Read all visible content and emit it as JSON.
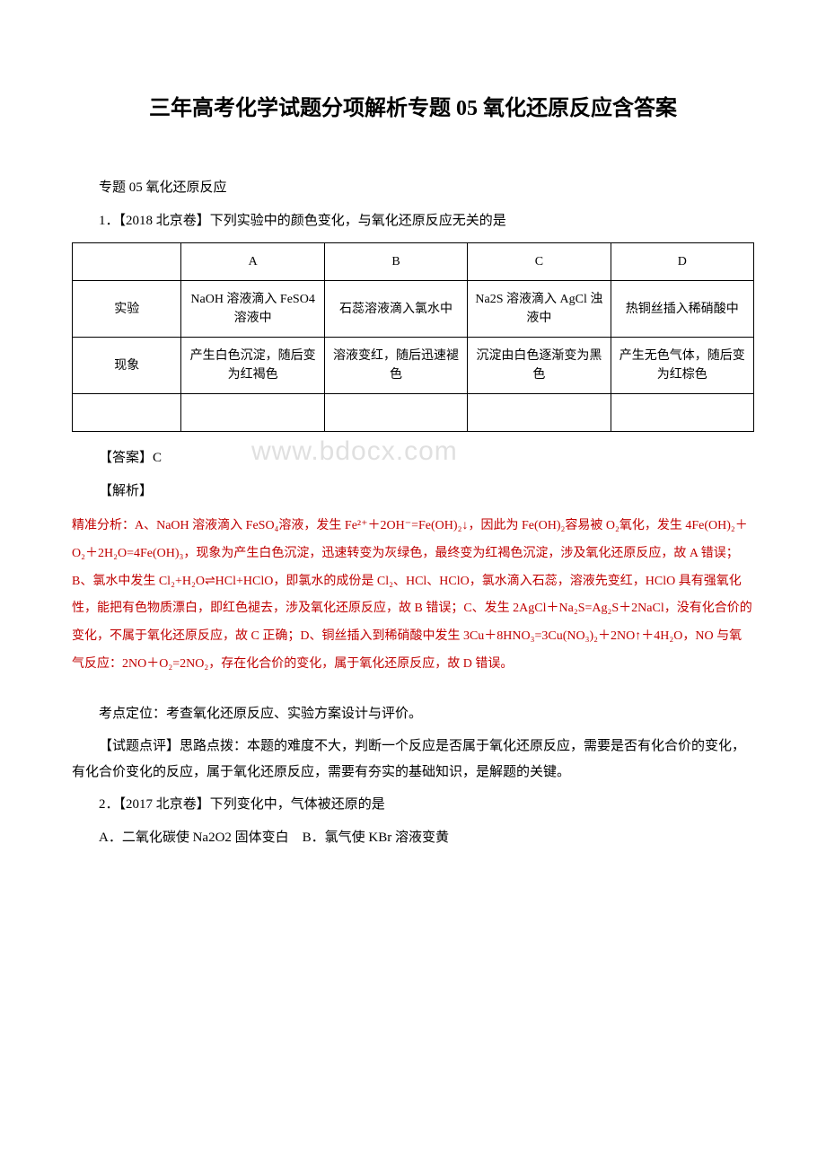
{
  "title": "三年高考化学试题分项解析专题 05 氧化还原反应含答案",
  "subtitle": "专题 05 氧化还原反应",
  "q1_stem": "1．【2018 北京卷】下列实验中的颜色变化，与氧化还原反应无关的是",
  "table": {
    "header": [
      "",
      "A",
      "B",
      "C",
      "D"
    ],
    "row1_label": "实验",
    "row1": [
      "NaOH 溶液滴入 FeSO4 溶液中",
      "石蕊溶液滴入氯水中",
      "Na2S 溶液滴入 AgCl 浊液中",
      "热铜丝插入稀硝酸中"
    ],
    "row2_label": "现象",
    "row2": [
      "产生白色沉淀，随后变为红褐色",
      "溶液变红，随后迅速褪色",
      "沉淀由白色逐渐变为黑色",
      "产生无色气体，随后变为红棕色"
    ]
  },
  "answer_label": "【答案】C",
  "explain_label": "【解析】",
  "watermark_text": "www.bdocx.com",
  "explanation": "精准分析：A、NaOH 溶液滴入 FeSO₄溶液，发生 Fe²⁺＋2OH⁻=Fe(OH)₂↓，因此为 Fe(OH)₂容易被 O₂氧化，发生 4Fe(OH)₂＋O₂＋2H₂O=4Fe(OH)₃，现象为产生白色沉淀，迅速转变为灰绿色，最终变为红褐色沉淀，涉及氧化还原反应，故 A 错误；B、氯水中发生 Cl₂+H₂O⇌HCl+HClO，即氯水的成份是 Cl₂、HCl、HClO，氯水滴入石蕊，溶液先变红，HClO 具有强氧化性，能把有色物质漂白，即红色褪去，涉及氧化还原反应，故 B 错误；C、发生 2AgCl＋Na₂S=Ag₂S＋2NaCl，没有化合价的变化，不属于氧化还原反应，故 C 正确；D、铜丝插入到稀硝酸中发生 3Cu＋8HNO₃=3Cu(NO₃)₂＋2NO↑＋4H₂O，NO 与氧气反应：2NO＋O₂=2NO₂，存在化合价的变化，属于氧化还原反应，故 D 错误。",
  "kaodian": "考点定位：考查氧化还原反应、实验方案设计与评价。",
  "dianping": "【试题点评】思路点拨：本题的难度不大，判断一个反应是否属于氧化还原反应，需要是否有化合价的变化，有化合价变化的反应，属于氧化还原反应，需要有夯实的基础知识，是解题的关键。",
  "q2_stem": "2．【2017 北京卷】下列变化中，气体被还原的是",
  "q2_optionA": "A．二氧化碳使 Na2O2 固体变白　B．氯气使 KBr 溶液变黄",
  "colors": {
    "text": "#000000",
    "red": "#c00000",
    "watermark": "#e0e0e0",
    "background": "#ffffff",
    "border": "#000000"
  },
  "fonts": {
    "title_size": 24,
    "body_size": 15,
    "table_size": 14,
    "explanation_size": 14,
    "watermark_size": 30
  }
}
